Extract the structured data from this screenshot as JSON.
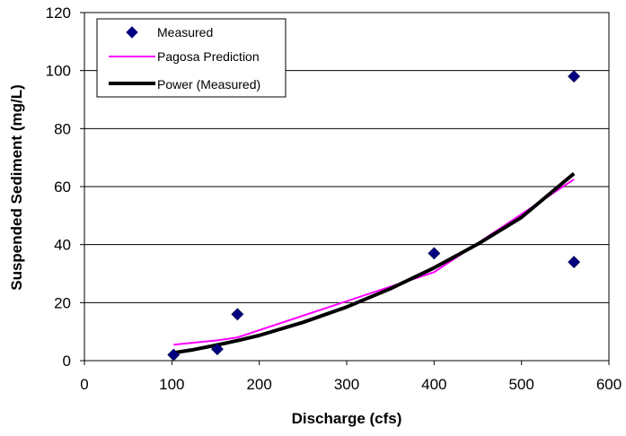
{
  "chart_data": {
    "type": "scatter",
    "xlabel": "Discharge (cfs)",
    "ylabel": "Suspended Sediment (mg/L)",
    "xlim": [
      0,
      600
    ],
    "ylim": [
      0,
      120
    ],
    "xticks": [
      "0",
      "100",
      "200",
      "300",
      "400",
      "500",
      "600"
    ],
    "yticks": [
      "0",
      "20",
      "40",
      "60",
      "80",
      "100",
      "120"
    ],
    "grid": "horizontal",
    "legend_position": "top-left",
    "series": [
      {
        "name": "Measured",
        "kind": "scatter",
        "marker": "diamond",
        "color": "#000080",
        "x": [
          102,
          152,
          175,
          400,
          560,
          560
        ],
        "y": [
          2,
          4,
          16,
          37,
          98,
          34
        ]
      },
      {
        "name": "Pagosa Prediction",
        "kind": "line",
        "color": "#ff00ff",
        "x": [
          102,
          152,
          175,
          400,
          560
        ],
        "y": [
          5.5,
          7,
          8,
          30.5,
          62.5
        ]
      },
      {
        "name": "Power (Measured)",
        "kind": "line",
        "color": "#000000",
        "x": [
          102,
          125,
          150,
          175,
          200,
          250,
          300,
          350,
          400,
          450,
          500,
          560
        ],
        "y": [
          2.7,
          3.8,
          5.3,
          6.9,
          8.7,
          13.2,
          18.5,
          24.8,
          32,
          40.2,
          49.4,
          64.5
        ]
      }
    ]
  }
}
